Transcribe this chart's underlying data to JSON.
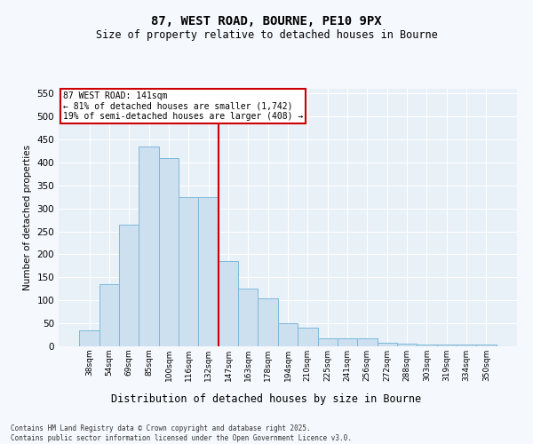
{
  "title1": "87, WEST ROAD, BOURNE, PE10 9PX",
  "title2": "Size of property relative to detached houses in Bourne",
  "xlabel": "Distribution of detached houses by size in Bourne",
  "ylabel": "Number of detached properties",
  "categories": [
    "38sqm",
    "54sqm",
    "69sqm",
    "85sqm",
    "100sqm",
    "116sqm",
    "132sqm",
    "147sqm",
    "163sqm",
    "178sqm",
    "194sqm",
    "210sqm",
    "225sqm",
    "241sqm",
    "256sqm",
    "272sqm",
    "288sqm",
    "303sqm",
    "319sqm",
    "334sqm",
    "350sqm"
  ],
  "values": [
    35,
    135,
    265,
    435,
    410,
    325,
    325,
    185,
    125,
    105,
    50,
    40,
    18,
    18,
    18,
    8,
    6,
    4,
    3,
    4,
    4
  ],
  "bar_color": "#cce0f0",
  "bar_edge_color": "#7fb8da",
  "vline_color": "#cc0000",
  "annotation_title": "87 WEST ROAD: 141sqm",
  "annotation_line1": "← 81% of detached houses are smaller (1,742)",
  "annotation_line2": "19% of semi-detached houses are larger (408) →",
  "annotation_box_color": "#cc0000",
  "ylim": [
    0,
    560
  ],
  "yticks": [
    0,
    50,
    100,
    150,
    200,
    250,
    300,
    350,
    400,
    450,
    500,
    550
  ],
  "bg_color": "#e8f0f8",
  "grid_color": "#ffffff",
  "fig_bg_color": "#f5f8fc",
  "footer1": "Contains HM Land Registry data © Crown copyright and database right 2025.",
  "footer2": "Contains public sector information licensed under the Open Government Licence v3.0."
}
